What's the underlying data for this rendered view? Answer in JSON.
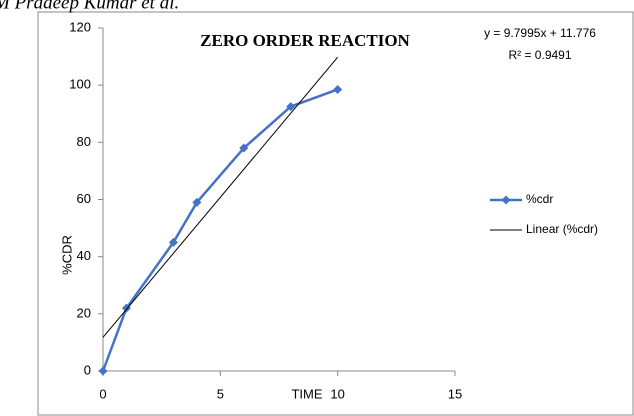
{
  "header": "M Pradeep Kumar et al.",
  "chart_data": {
    "type": "line",
    "title": "ZERO ORDER REACTION",
    "x_label": "TIME",
    "y_label": "%CDR",
    "series": [
      {
        "name": "%cdr",
        "color": "#4472c4",
        "marker": "diamond",
        "x": [
          0,
          1,
          3,
          4,
          6,
          8,
          10
        ],
        "values": [
          0,
          22,
          45,
          59,
          78,
          92.5,
          98.5
        ]
      },
      {
        "name": "Linear (%cdr)",
        "color": "#000000",
        "x": [
          0,
          10
        ],
        "values": [
          11.776,
          109.771
        ]
      }
    ],
    "annotations": [
      "y = 9.7995x + 11.776",
      "R² = 0.9491"
    ],
    "xlim": [
      0,
      15
    ],
    "xticks": [
      0,
      5,
      10,
      15
    ],
    "ylim": [
      0,
      120
    ],
    "yticks": [
      0,
      20,
      40,
      60,
      80,
      100,
      120
    ],
    "legend": "right"
  }
}
